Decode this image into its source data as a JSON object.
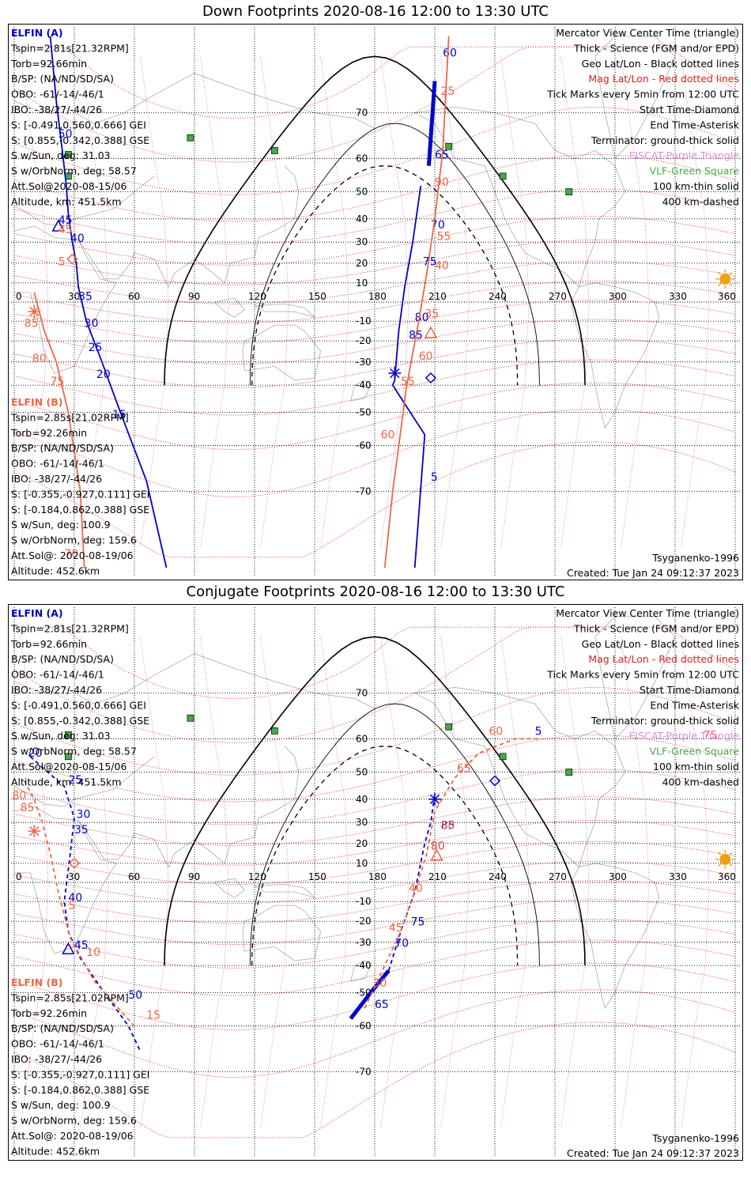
{
  "panels": [
    {
      "id": "down",
      "title": "Down Footprints 2020-08-16 12:00 to 13:30 UTC",
      "elfin_a": {
        "name": "ELFIN (A)",
        "lines": [
          "Tspin=2.81s[21.32RPM]",
          "Torb=92.66min",
          "B/SP: (NA/ND/SD/SA)",
          "OBO: -61/-14/-46/1",
          "IBO: -38/27/-44/26",
          "S: [-0.491,0.560,0.666] GEI",
          "S: [0.855,-0.342,0.388] GSE",
          "S w/Sun, deg: 31.03",
          "S w/OrbNorm, deg: 58.57",
          "Att.Sol@2020-08-15/06",
          "Altitude, km: 451.5km"
        ]
      },
      "elfin_b": {
        "name": "ELFIN (B)",
        "lines": [
          "Tspin=2.85s[21.02RPM]",
          "Torb=92.26min",
          "B/SP: (NA/ND/SD/SA)",
          "OBO: -61/-14/-46/1",
          "IBO: -38/27/-44/26",
          "S: [-0.355,-0.927,0.111] GEI",
          "S: [-0.184,0.862,0.388] GSE",
          "S w/Sun, deg: 100.9",
          "S w/OrbNorm, deg: 159.6",
          "Att.Sol@: 2020-08-19/06",
          "Altitude: 452.6km"
        ]
      },
      "footer_left": "Tsyganenko-1996",
      "footer_right": "Created: Tue Jan 24 09:12:37 2023"
    },
    {
      "id": "conjugate",
      "title": "Conjugate Footprints 2020-08-16 12:00 to 13:30 UTC",
      "elfin_a": {
        "name": "ELFIN (A)",
        "lines": [
          "Tspin=2.81s[21.32RPM]",
          "Torb=92.66min",
          "B/SP: (NA/ND/SD/SA)",
          "OBO: -61/-14/-46/1",
          "IBO: -38/27/-44/26",
          "S: [-0.491,0.560,0.666] GEI",
          "S: [0.855,-0.342,0.388] GSE",
          "S w/Sun, deg: 31.03",
          "S w/OrbNorm, deg: 58.57",
          "Att.Sol@2020-08-15/06",
          "Altitude, km: 451.5km"
        ]
      },
      "elfin_b": {
        "name": "ELFIN (B)",
        "lines": [
          "Tspin=2.85s[21.02RPM]",
          "Torb=92.26min",
          "B/SP: (NA/ND/SD/SA)",
          "OBO: -61/-14/-46/1",
          "IBO: -38/27/-44/26",
          "S: [-0.355,-0.927,0.111] GEI",
          "S: [-0.184,0.862,0.388] GSE",
          "S w/Sun, deg: 100.9",
          "S w/OrbNorm, deg: 159.6",
          "Att.Sol@: 2020-08-19/06",
          "Altitude: 452.6km"
        ]
      },
      "footer_left": "Tsyganenko-1996",
      "footer_right": "Created: Tue Jan 24 09:12:37 2023"
    }
  ],
  "legend": [
    {
      "text": "Mercator View Center Time (triangle)",
      "color": "#000000"
    },
    {
      "text": "Thick - Science (FGM and/or EPD)",
      "color": "#000000"
    },
    {
      "text": "Geo Lat/Lon - Black dotted lines",
      "color": "#000000"
    },
    {
      "text": "Mag Lat/Lon - Red dotted lines",
      "color": "#dd2222"
    },
    {
      "text": "Tick Marks every 5min from 12:00 UTC",
      "color": "#000000"
    },
    {
      "text": "Start Time-Diamond",
      "color": "#000000"
    },
    {
      "text": "End Time-Asterisk",
      "color": "#000000"
    },
    {
      "text": "Terminator: ground-thick solid",
      "color": "#000000"
    },
    {
      "text": "EISCAT-Purple Triangle",
      "color": "#dd88dd"
    },
    {
      "text": "VLF-Green Square",
      "color": "#44aa44"
    },
    {
      "text": "100 km-thin solid",
      "color": "#000000"
    },
    {
      "text": "400 km-dashed",
      "color": "#000000"
    }
  ],
  "colors": {
    "elfin_a": "#0000cc",
    "elfin_b": "#ee6644",
    "mag_grid": "#ee2222",
    "geo_grid": "#000000",
    "station_vlf": "#44aa44",
    "station_eiscat": "#cc66cc",
    "sun": "#f0a010",
    "coast": "#aaaaaa"
  },
  "chart_data": [
    {
      "type": "map-track",
      "projection": "Mercator",
      "xlim": [
        0,
        360
      ],
      "ylim": [
        -80,
        80
      ],
      "x_ticks": [
        0,
        30,
        60,
        90,
        120,
        150,
        180,
        210,
        240,
        270,
        300,
        330,
        360
      ],
      "y_ticks": [
        -70,
        -60,
        -50,
        -40,
        -30,
        -20,
        -10,
        10,
        20,
        30,
        40,
        50,
        60,
        70
      ],
      "vlf_stations": [
        [
          88,
          65
        ],
        [
          130,
          62
        ],
        [
          217,
          63
        ],
        [
          244,
          55
        ],
        [
          277,
          50
        ],
        [
          27,
          55
        ],
        [
          27,
          61
        ]
      ],
      "sun": [
        355,
        12
      ],
      "elfin_a": {
        "track": [
          [
            18,
            80
          ],
          [
            21,
            72
          ],
          [
            24,
            62
          ],
          [
            26,
            52
          ],
          [
            27,
            42
          ],
          [
            29,
            30
          ],
          [
            31,
            20
          ],
          [
            32,
            8
          ],
          [
            36,
            -10
          ],
          [
            43,
            -28
          ],
          [
            53,
            -50
          ],
          [
            66,
            -68
          ],
          [
            76,
            -80
          ]
        ],
        "science_track": [
          [
            210,
            75
          ],
          [
            207,
            58
          ]
        ],
        "track2": [
          [
            203,
            52
          ],
          [
            199,
            30
          ],
          [
            195,
            8
          ],
          [
            192,
            -15
          ],
          [
            190,
            -38
          ],
          [
            189,
            -40
          ],
          [
            205,
            -57
          ],
          [
            200,
            -80
          ]
        ],
        "tick_labels": [
          [
            60,
            214,
            78
          ],
          [
            65,
            210,
            60
          ],
          [
            70,
            208,
            36
          ],
          [
            75,
            204,
            19
          ],
          [
            80,
            200,
            -10
          ],
          [
            85,
            197,
            -19
          ],
          [
            45,
            22,
            38
          ],
          [
            40,
            28,
            30
          ],
          [
            35,
            32,
            1
          ],
          [
            30,
            35,
            -13
          ],
          [
            25,
            37,
            -25
          ],
          [
            20,
            41,
            -37
          ],
          [
            15,
            49,
            -52
          ],
          [
            5,
            208,
            -68
          ],
          [
            50,
            22,
            65
          ]
        ],
        "start": [
          208,
          -37
        ],
        "end": [
          190,
          -35
        ],
        "center": [
          22,
          37
        ]
      },
      "elfin_b": {
        "track": [
          [
            10,
            5
          ],
          [
            15,
            -15
          ],
          [
            21,
            -30
          ],
          [
            27,
            -50
          ],
          [
            33,
            -70
          ],
          [
            35,
            -80
          ]
        ],
        "track2": [
          [
            217,
            80
          ],
          [
            214,
            62
          ],
          [
            210,
            40
          ],
          [
            206,
            15
          ],
          [
            202,
            -10
          ],
          [
            196,
            -40
          ],
          [
            189,
            -70
          ],
          [
            185,
            -80
          ]
        ],
        "tick_labels": [
          [
            25,
            213,
            73
          ],
          [
            90,
            210,
            52
          ],
          [
            55,
            211,
            31
          ],
          [
            40,
            210,
            17
          ],
          [
            35,
            205,
            -8
          ],
          [
            60,
            202,
            -29
          ],
          [
            55,
            193,
            -40
          ],
          [
            60,
            183,
            -58
          ],
          [
            85,
            5,
            -13
          ],
          [
            80,
            9,
            -30
          ],
          [
            75,
            18,
            -40
          ],
          [
            70,
            25,
            -79
          ],
          [
            45,
            22,
            34
          ],
          [
            5,
            22,
            19
          ]
        ],
        "start": [
          29,
          22
        ],
        "end": [
          10,
          -5
        ],
        "center": [
          208,
          -16
        ]
      }
    },
    {
      "type": "map-track",
      "projection": "Mercator",
      "xlim": [
        0,
        360
      ],
      "ylim": [
        -80,
        80
      ],
      "x_ticks": [
        0,
        30,
        60,
        90,
        120,
        150,
        180,
        210,
        240,
        270,
        300,
        330,
        360
      ],
      "y_ticks": [
        -70,
        -60,
        -50,
        -40,
        -30,
        -20,
        -10,
        10,
        20,
        30,
        40,
        50,
        60,
        70
      ],
      "vlf_stations": [
        [
          88,
          65
        ],
        [
          130,
          62
        ],
        [
          217,
          63
        ],
        [
          244,
          55
        ],
        [
          277,
          50
        ],
        [
          27,
          55
        ],
        [
          27,
          61
        ]
      ],
      "sun": [
        355,
        12
      ],
      "elfin_a": {
        "track": [
          [
            8,
            55
          ],
          [
            15,
            51
          ],
          [
            25,
            45
          ],
          [
            30,
            32
          ],
          [
            28,
            15
          ],
          [
            25,
            -10
          ],
          [
            27,
            -25
          ],
          [
            33,
            -37
          ],
          [
            45,
            -50
          ],
          [
            57,
            -60
          ],
          [
            63,
            -66
          ]
        ],
        "science_track": [
          [
            168,
            -58
          ],
          [
            178,
            -50
          ],
          [
            187,
            -42
          ]
        ],
        "track2": [
          [
            187,
            -42
          ],
          [
            193,
            -25
          ],
          [
            200,
            -5
          ],
          [
            205,
            20
          ],
          [
            208,
            30
          ],
          [
            210,
            42
          ]
        ],
        "tick_labels": [
          [
            20,
            7,
            55
          ],
          [
            25,
            27,
            46
          ],
          [
            30,
            31,
            32
          ],
          [
            35,
            30,
            25
          ],
          [
            40,
            27,
            -10
          ],
          [
            45,
            30,
            -33
          ],
          [
            50,
            57,
            -52
          ],
          [
            5,
            260,
            61
          ],
          [
            65,
            180,
            -55
          ],
          [
            70,
            190,
            -32
          ],
          [
            75,
            198,
            -22
          ],
          [
            85,
            213,
            27
          ],
          [
            80,
            208,
            17
          ]
        ],
        "start": [
          240,
          47
        ],
        "end": [
          210,
          40
        ],
        "center": [
          27,
          -33
        ]
      },
      "elfin_b": {
        "track": [
          [
            5,
            47
          ],
          [
            10,
            40
          ],
          [
            14,
            30
          ],
          [
            18,
            15
          ],
          [
            22,
            -5
          ],
          [
            28,
            -28
          ],
          [
            40,
            -46
          ],
          [
            55,
            -57
          ],
          [
            60,
            -60
          ]
        ],
        "track2": [
          [
            175,
            -55
          ],
          [
            185,
            -40
          ],
          [
            193,
            -25
          ],
          [
            200,
            -5
          ],
          [
            206,
            15
          ],
          [
            210,
            35
          ],
          [
            220,
            48
          ],
          [
            232,
            56
          ],
          [
            250,
            60
          ],
          [
            262,
            60
          ]
        ],
        "tick_labels": [
          [
            80,
            -1,
            40
          ],
          [
            85,
            3,
            35
          ],
          [
            5,
            27,
            -14
          ],
          [
            10,
            36,
            -36
          ],
          [
            15,
            66,
            -58
          ],
          [
            75,
            344,
            60
          ],
          [
            60,
            237,
            61
          ],
          [
            65,
            221,
            50
          ],
          [
            50,
            213,
            27
          ],
          [
            40,
            197,
            -5
          ],
          [
            45,
            187,
            -25
          ],
          [
            30,
            179,
            -48
          ],
          [
            80,
            208,
            17
          ]
        ],
        "start": [
          30,
          10
        ],
        "end": [
          10,
          26
        ],
        "center": [
          211,
          14
        ]
      }
    }
  ]
}
